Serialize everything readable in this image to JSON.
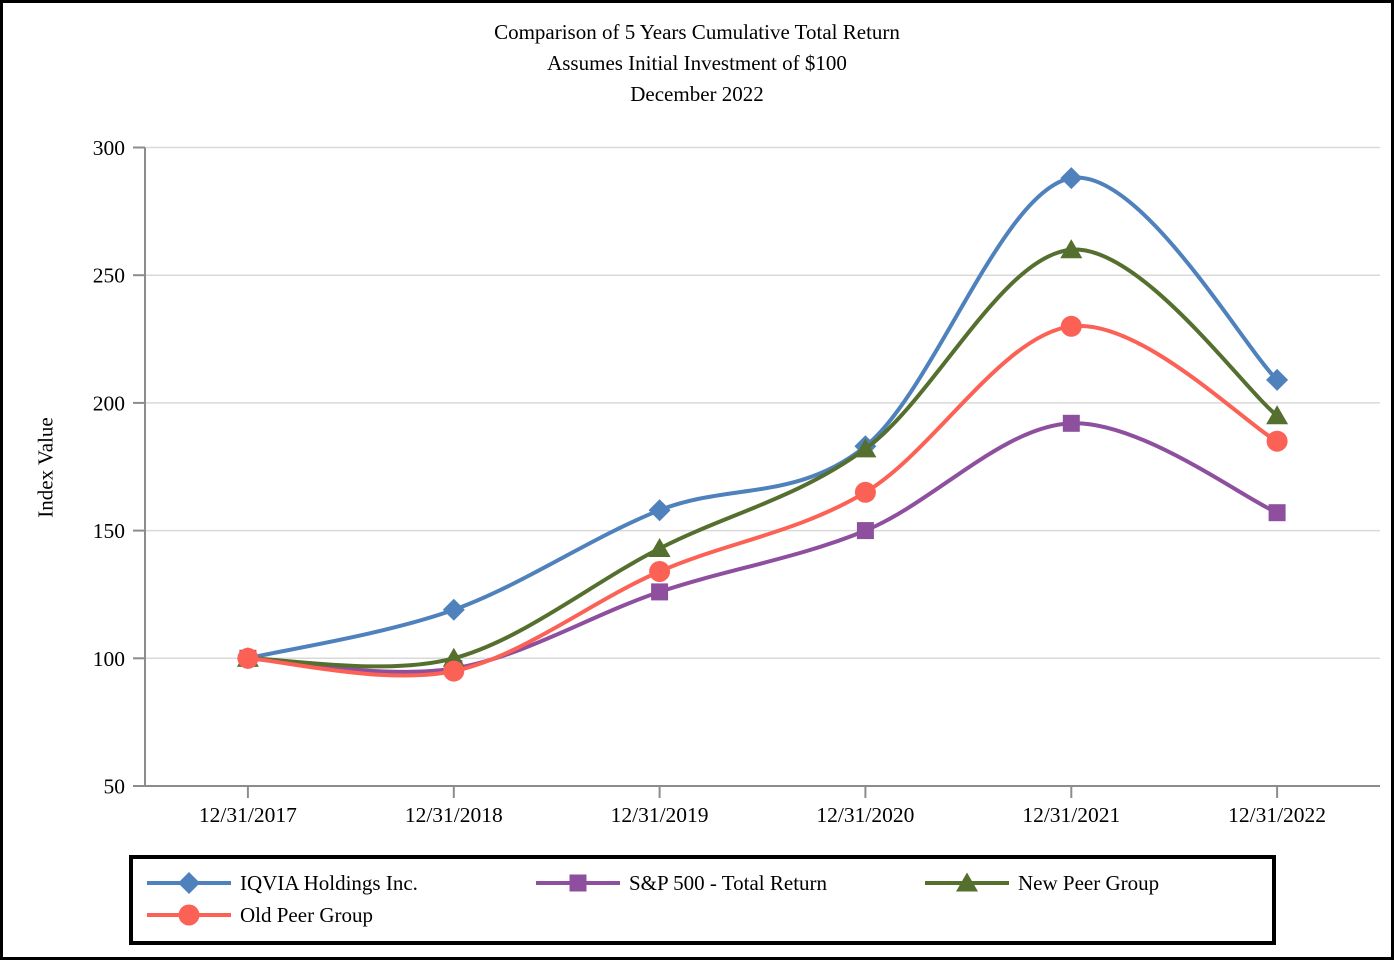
{
  "chart_data": {
    "type": "line",
    "title": "Comparison of 5 Years Cumulative Total Return",
    "subtitle": "Assumes Initial Investment of $100",
    "period_label": "December 2022",
    "ylabel": "Index Value",
    "xlabel": "",
    "categories": [
      "12/31/2017",
      "12/31/2018",
      "12/31/2019",
      "12/31/2020",
      "12/31/2021",
      "12/31/2022"
    ],
    "ylim": [
      50,
      300
    ],
    "yticks": [
      50,
      100,
      150,
      200,
      250,
      300
    ],
    "grid": true,
    "smooth_lines": true,
    "legend_position": "bottom",
    "colors": {
      "gridline": "#D9D9D9",
      "axis": "#8C8C8C",
      "text": "#000000"
    },
    "series": [
      {
        "name": "IQVIA Holdings Inc.",
        "marker": "diamond",
        "color": "#4F81BD",
        "values": [
          100,
          119,
          158,
          183,
          288,
          209
        ]
      },
      {
        "name": "S&P 500 - Total Return",
        "marker": "square",
        "color": "#8E4F9E",
        "values": [
          100,
          96,
          126,
          150,
          192,
          157
        ]
      },
      {
        "name": "New Peer Group",
        "marker": "triangle",
        "color": "#556F2F",
        "values": [
          100,
          100,
          143,
          182,
          260,
          195
        ]
      },
      {
        "name": "Old Peer Group",
        "marker": "circle",
        "color": "#FB6255",
        "values": [
          100,
          95,
          134,
          165,
          230,
          185
        ]
      }
    ]
  }
}
